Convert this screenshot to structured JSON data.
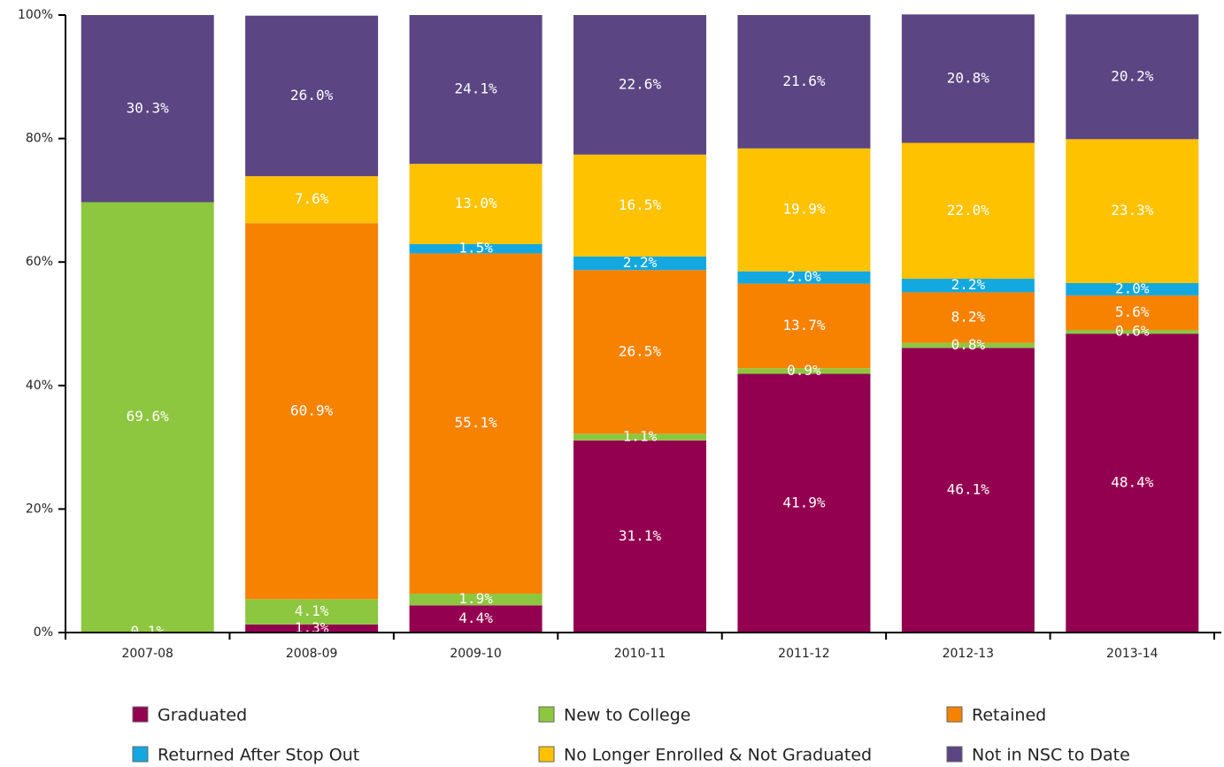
{
  "chart_data": {
    "type": "bar",
    "stacked": true,
    "categories": [
      "2007-08",
      "2008-09",
      "2009-10",
      "2010-11",
      "2011-12",
      "2012-13",
      "2013-14"
    ],
    "ylim": [
      0,
      100
    ],
    "yticks": [
      "0%",
      "20%",
      "40%",
      "60%",
      "80%",
      "100%"
    ],
    "grid": false,
    "legend_position": "bottom",
    "series": [
      {
        "name": "Graduated",
        "color": "#930050",
        "values": [
          0.1,
          1.3,
          4.4,
          31.1,
          41.9,
          46.1,
          48.4
        ],
        "labels": [
          "0.1%",
          "1.3%",
          "4.4%",
          "31.1%",
          "41.9%",
          "46.1%",
          "48.4%"
        ]
      },
      {
        "name": "New to College",
        "color": "#8dc63f",
        "values": [
          69.6,
          4.1,
          1.9,
          1.1,
          0.9,
          0.8,
          0.6
        ],
        "labels": [
          "69.6%",
          "4.1%",
          "1.9%",
          "1.1%",
          "0.9%",
          "0.8%",
          "0.6%"
        ]
      },
      {
        "name": "Retained",
        "color": "#f68200",
        "values": [
          0,
          60.9,
          55.1,
          26.5,
          13.7,
          8.2,
          5.6
        ],
        "labels": [
          "",
          "60.9%",
          "55.1%",
          "26.5%",
          "13.7%",
          "8.2%",
          "5.6%"
        ]
      },
      {
        "name": "Returned After Stop Out",
        "color": "#13a8e0",
        "values": [
          0,
          0,
          1.5,
          2.2,
          2.0,
          2.2,
          2.0
        ],
        "labels": [
          "",
          "",
          "1.5%",
          "2.2%",
          "2.0%",
          "2.2%",
          "2.0%"
        ]
      },
      {
        "name": "No Longer Enrolled & Not Graduated",
        "color": "#ffc200",
        "values": [
          0,
          7.6,
          13.0,
          16.5,
          19.9,
          22.0,
          23.3
        ],
        "labels": [
          "",
          "7.6%",
          "13.0%",
          "16.5%",
          "19.9%",
          "22.0%",
          "23.3%"
        ]
      },
      {
        "name": "Not in NSC to Date",
        "color": "#5b4583",
        "values": [
          30.3,
          26.0,
          24.1,
          22.6,
          21.6,
          20.8,
          20.2
        ],
        "labels": [
          "30.3%",
          "26.0%",
          "24.1%",
          "22.6%",
          "21.6%",
          "20.8%",
          "20.2%"
        ]
      }
    ]
  }
}
